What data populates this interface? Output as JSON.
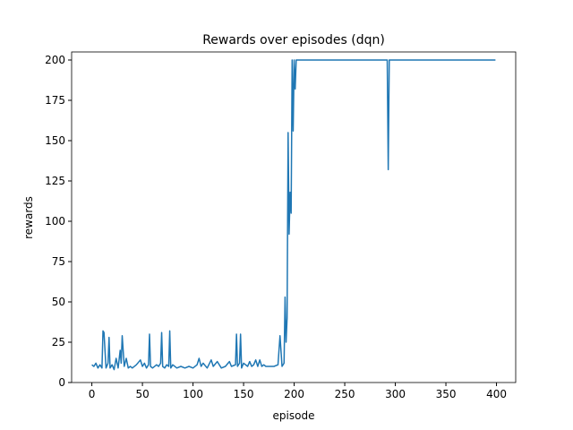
{
  "chart_data": {
    "type": "line",
    "title": "Rewards over episodes (dqn)",
    "x_label": "episode",
    "y_label": "rewards",
    "x": [
      0,
      2,
      4,
      6,
      8,
      10,
      11,
      12,
      14,
      16,
      17,
      18,
      20,
      22,
      24,
      26,
      28,
      29,
      30,
      32,
      34,
      36,
      38,
      40,
      44,
      48,
      50,
      52,
      54,
      56,
      57,
      58,
      60,
      64,
      66,
      68,
      69,
      70,
      72,
      74,
      76,
      77,
      78,
      80,
      84,
      88,
      92,
      96,
      100,
      104,
      106,
      108,
      110,
      114,
      118,
      120,
      124,
      128,
      132,
      136,
      138,
      142,
      143,
      144,
      146,
      147,
      148,
      150,
      154,
      156,
      158,
      160,
      162,
      164,
      166,
      168,
      170,
      172,
      176,
      180,
      184,
      186,
      188,
      190,
      191,
      192,
      193,
      194,
      195,
      196,
      197,
      198,
      199,
      200,
      201,
      202,
      203,
      204,
      206,
      210,
      250,
      292,
      293,
      294,
      295,
      296,
      300,
      350,
      399
    ],
    "series": [
      {
        "name": "rewards",
        "color": "#1f77b4",
        "values": [
          11,
          10,
          12,
          9,
          11,
          9,
          32,
          31,
          9,
          12,
          28,
          9,
          11,
          8,
          15,
          9,
          20,
          12,
          29,
          10,
          15,
          9,
          10,
          9,
          11,
          14,
          10,
          12,
          9,
          11,
          30,
          10,
          9,
          11,
          10,
          12,
          31,
          10,
          9,
          11,
          10,
          32,
          9,
          11,
          9,
          10,
          9,
          10,
          9,
          11,
          15,
          10,
          12,
          9,
          14,
          10,
          13,
          9,
          10,
          13,
          10,
          11,
          30,
          10,
          12,
          30,
          9,
          12,
          10,
          13,
          10,
          11,
          14,
          10,
          14,
          10,
          11,
          10,
          10,
          10,
          11,
          29,
          10,
          12,
          53,
          25,
          40,
          155,
          92,
          118,
          105,
          200,
          156,
          200,
          182,
          200,
          200,
          200,
          200,
          200,
          200,
          200,
          132,
          200,
          200,
          200,
          200,
          200,
          200
        ]
      }
    ],
    "xlim": [
      -20,
      419
    ],
    "ylim": [
      0,
      205
    ],
    "xticks": [
      0,
      50,
      100,
      150,
      200,
      250,
      300,
      350,
      400
    ],
    "yticks": [
      0,
      25,
      50,
      75,
      100,
      125,
      150,
      175,
      200
    ]
  }
}
